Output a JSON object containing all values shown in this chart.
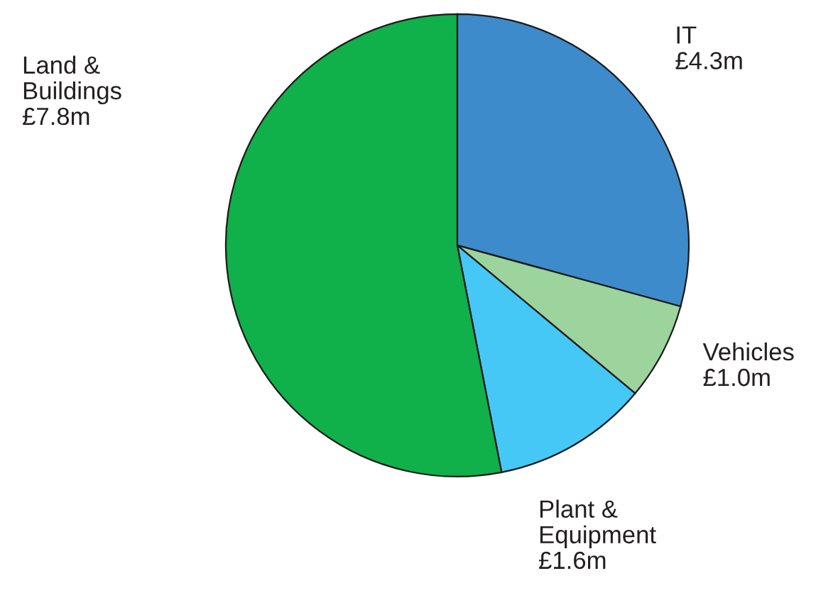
{
  "chart_data": {
    "type": "pie",
    "categories": [
      "IT",
      "Vehicles",
      "Plant &\nEquipment",
      "Land &\nBuildings"
    ],
    "values": [
      4.3,
      1.0,
      1.6,
      7.8
    ],
    "value_labels": [
      "£4.3m",
      "£1.0m",
      "£1.6m",
      "£7.8m"
    ],
    "colors": [
      "#3d8bcb",
      "#9dd39d",
      "#45c8f5",
      "#10b04a"
    ],
    "legend": false
  }
}
